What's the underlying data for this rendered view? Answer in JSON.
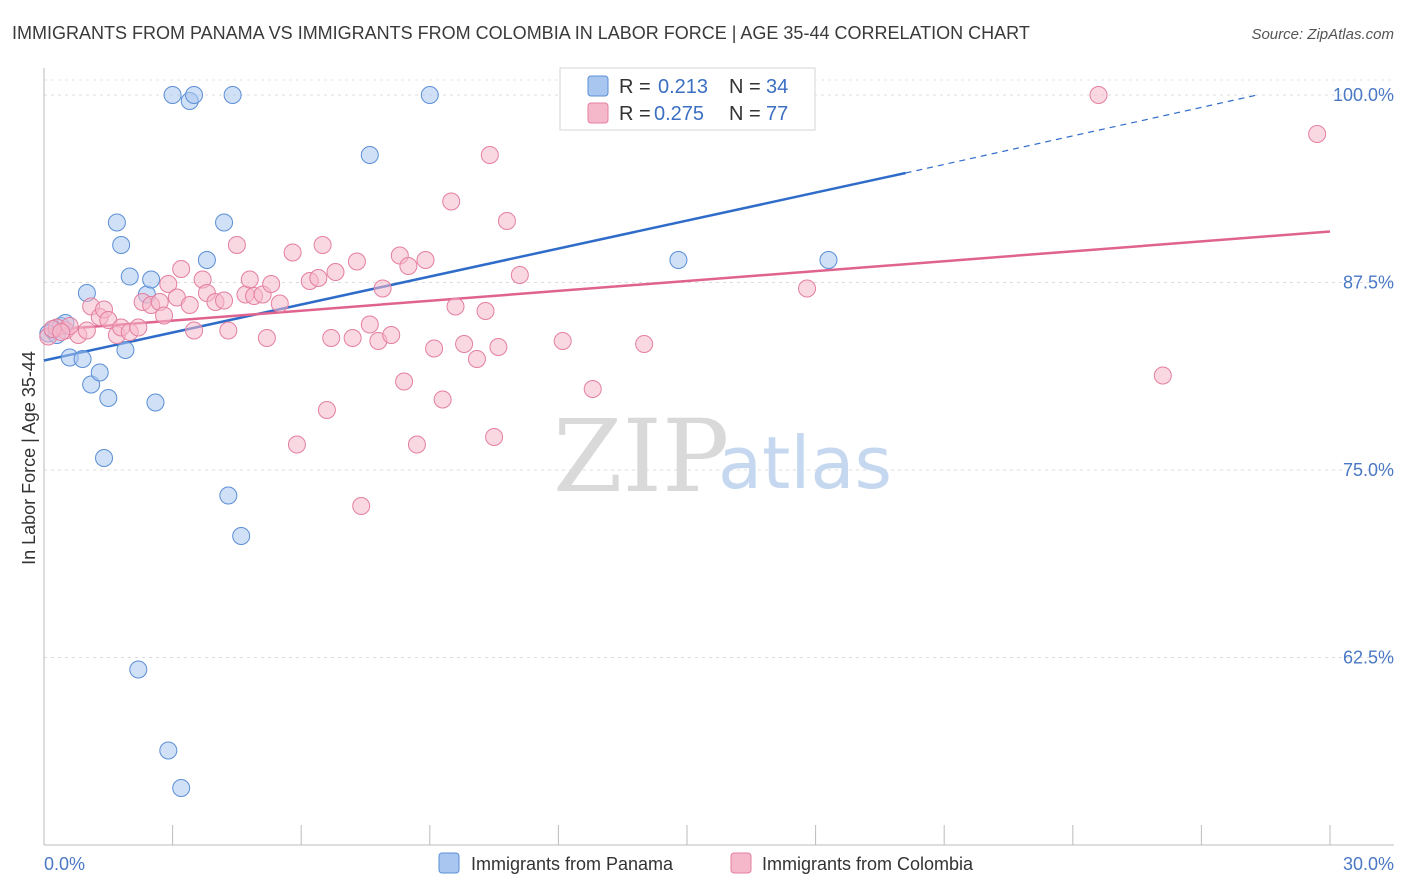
{
  "chart_data": {
    "type": "scatter",
    "title": "IMMIGRANTS FROM PANAMA VS IMMIGRANTS FROM COLOMBIA IN LABOR FORCE | AGE 35-44 CORRELATION CHART",
    "source": "Source: ZipAtlas.com",
    "xlabel": "",
    "ylabel": "In Labor Force | Age 35-44",
    "xlim": [
      0,
      30
    ],
    "ylim": [
      50,
      101
    ],
    "x_tick_labels": [
      "0.0%",
      "30.0%"
    ],
    "y_ticks": [
      62.5,
      75.0,
      87.5,
      100.0
    ],
    "y_tick_labels": [
      "62.5%",
      "75.0%",
      "87.5%",
      "100.0%"
    ],
    "watermark": {
      "zip": "ZIP",
      "atlas": "atlas"
    },
    "legend": {
      "r_label": "R =",
      "n_label": "N =",
      "entries": [
        {
          "r": "0.213",
          "n": "34"
        },
        {
          "r": "0.275",
          "n": "77"
        }
      ]
    },
    "series": [
      {
        "name": "Immigrants from Panama",
        "color": "#a9c6f0",
        "stroke": "#5b8fd6",
        "trend_color": "#2f6cc9",
        "trend": {
          "x0": 0.0,
          "y0": 82.3,
          "x1": 20.1,
          "y1": 94.8,
          "dash_x1": 28.3,
          "dash_y1": 100.0
        },
        "points": [
          [
            0.2,
            84.3
          ],
          [
            0.4,
            84.6
          ],
          [
            0.6,
            82.5
          ],
          [
            0.9,
            82.4
          ],
          [
            1.0,
            86.8
          ],
          [
            1.1,
            80.7
          ],
          [
            1.3,
            81.5
          ],
          [
            1.4,
            75.8
          ],
          [
            1.5,
            79.8
          ],
          [
            1.7,
            91.5
          ],
          [
            1.8,
            90.0
          ],
          [
            1.9,
            83.0
          ],
          [
            2.0,
            87.9
          ],
          [
            2.2,
            61.7
          ],
          [
            2.4,
            86.7
          ],
          [
            2.5,
            87.7
          ],
          [
            2.6,
            79.5
          ],
          [
            2.9,
            56.3
          ],
          [
            3.0,
            100.0
          ],
          [
            3.2,
            53.8
          ],
          [
            3.4,
            99.6
          ],
          [
            3.5,
            100.0
          ],
          [
            3.8,
            89.0
          ],
          [
            4.2,
            91.5
          ],
          [
            4.3,
            73.3
          ],
          [
            4.4,
            100.0
          ],
          [
            4.6,
            70.6
          ],
          [
            7.6,
            96.0
          ],
          [
            9.0,
            100.0
          ],
          [
            14.8,
            89.0
          ],
          [
            18.3,
            89.0
          ],
          [
            0.1,
            84.1
          ],
          [
            0.5,
            84.8
          ],
          [
            0.3,
            84.0
          ]
        ]
      },
      {
        "name": "Immigrants from Colombia",
        "color": "#f5b8ca",
        "stroke": "#e47fa0",
        "trend_color": "#e0628f",
        "trend": {
          "x0": 0.0,
          "y0": 84.3,
          "x1": 30.0,
          "y1": 90.9
        },
        "points": [
          [
            0.1,
            83.9
          ],
          [
            0.3,
            84.5
          ],
          [
            0.5,
            84.3
          ],
          [
            0.8,
            84.0
          ],
          [
            1.0,
            84.3
          ],
          [
            1.1,
            85.9
          ],
          [
            1.3,
            85.2
          ],
          [
            1.4,
            85.7
          ],
          [
            1.5,
            85.0
          ],
          [
            1.7,
            84.0
          ],
          [
            1.8,
            84.5
          ],
          [
            2.0,
            84.2
          ],
          [
            2.2,
            84.5
          ],
          [
            2.3,
            86.2
          ],
          [
            2.5,
            86.0
          ],
          [
            2.7,
            86.2
          ],
          [
            2.8,
            85.3
          ],
          [
            2.9,
            87.4
          ],
          [
            3.1,
            86.5
          ],
          [
            3.2,
            88.4
          ],
          [
            3.4,
            86.0
          ],
          [
            3.5,
            84.3
          ],
          [
            3.7,
            87.7
          ],
          [
            3.8,
            86.8
          ],
          [
            4.0,
            86.2
          ],
          [
            4.2,
            86.3
          ],
          [
            4.3,
            84.3
          ],
          [
            4.5,
            90.0
          ],
          [
            4.7,
            86.7
          ],
          [
            4.8,
            87.7
          ],
          [
            4.9,
            86.6
          ],
          [
            5.1,
            86.7
          ],
          [
            5.2,
            83.8
          ],
          [
            5.3,
            87.4
          ],
          [
            5.5,
            86.1
          ],
          [
            5.8,
            89.5
          ],
          [
            5.9,
            76.7
          ],
          [
            6.2,
            87.6
          ],
          [
            6.4,
            87.8
          ],
          [
            6.5,
            90.0
          ],
          [
            6.6,
            79.0
          ],
          [
            6.7,
            83.8
          ],
          [
            6.8,
            88.2
          ],
          [
            7.2,
            83.8
          ],
          [
            7.3,
            88.9
          ],
          [
            7.4,
            72.6
          ],
          [
            7.6,
            84.7
          ],
          [
            7.8,
            83.6
          ],
          [
            7.9,
            87.1
          ],
          [
            8.1,
            84.0
          ],
          [
            8.3,
            89.3
          ],
          [
            8.4,
            80.9
          ],
          [
            8.5,
            88.6
          ],
          [
            8.7,
            76.7
          ],
          [
            8.9,
            89.0
          ],
          [
            9.1,
            83.1
          ],
          [
            9.3,
            79.7
          ],
          [
            9.5,
            92.9
          ],
          [
            9.6,
            85.9
          ],
          [
            9.8,
            83.4
          ],
          [
            10.1,
            82.4
          ],
          [
            10.3,
            85.6
          ],
          [
            10.4,
            96.0
          ],
          [
            10.5,
            77.2
          ],
          [
            10.6,
            83.2
          ],
          [
            10.8,
            91.6
          ],
          [
            11.1,
            88.0
          ],
          [
            12.1,
            83.6
          ],
          [
            12.8,
            80.4
          ],
          [
            14.0,
            83.4
          ],
          [
            17.8,
            87.1
          ],
          [
            24.6,
            100.0
          ],
          [
            26.1,
            81.3
          ],
          [
            29.7,
            97.4
          ],
          [
            0.2,
            84.4
          ],
          [
            0.6,
            84.6
          ],
          [
            0.4,
            84.2
          ]
        ]
      }
    ]
  }
}
